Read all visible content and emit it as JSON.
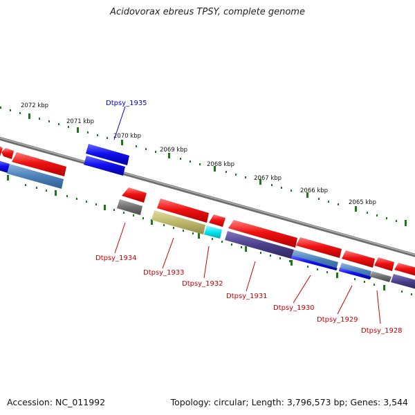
{
  "header": {
    "title": "Acidovorax ebreus TPSY, complete genome"
  },
  "footer": {
    "accession": "Accession: NC_011992",
    "summary": "Topology: circular; Length: 3,796,573 bp; Genes: 3,544"
  },
  "scale": {
    "tick_labels": [
      "2072 kbp",
      "2071 kbp",
      "2070 kbp",
      "2069 kbp",
      "2068 kbp",
      "2067 kbp",
      "2066 kbp",
      "2065 kbp"
    ]
  },
  "genes": {
    "labels": [
      "Dtpsy_1935",
      "Dtpsy_1934",
      "Dtpsy_1933",
      "Dtpsy_1932",
      "Dtpsy_1931",
      "Dtpsy_1930",
      "Dtpsy_1929",
      "Dtpsy_1928"
    ]
  },
  "colors": {
    "backbone": "#8c8c8c",
    "tick": "#1a7a1a",
    "cds": "#ee1111",
    "label_red": "#cc0000",
    "label_blue": "#0000cc",
    "blue": "#1111ee",
    "steelblue": "#4a80b8",
    "gray": "#707070",
    "olive": "#bdb76b",
    "cyan": "#00e5ee",
    "slate": "#4a3f8a"
  }
}
